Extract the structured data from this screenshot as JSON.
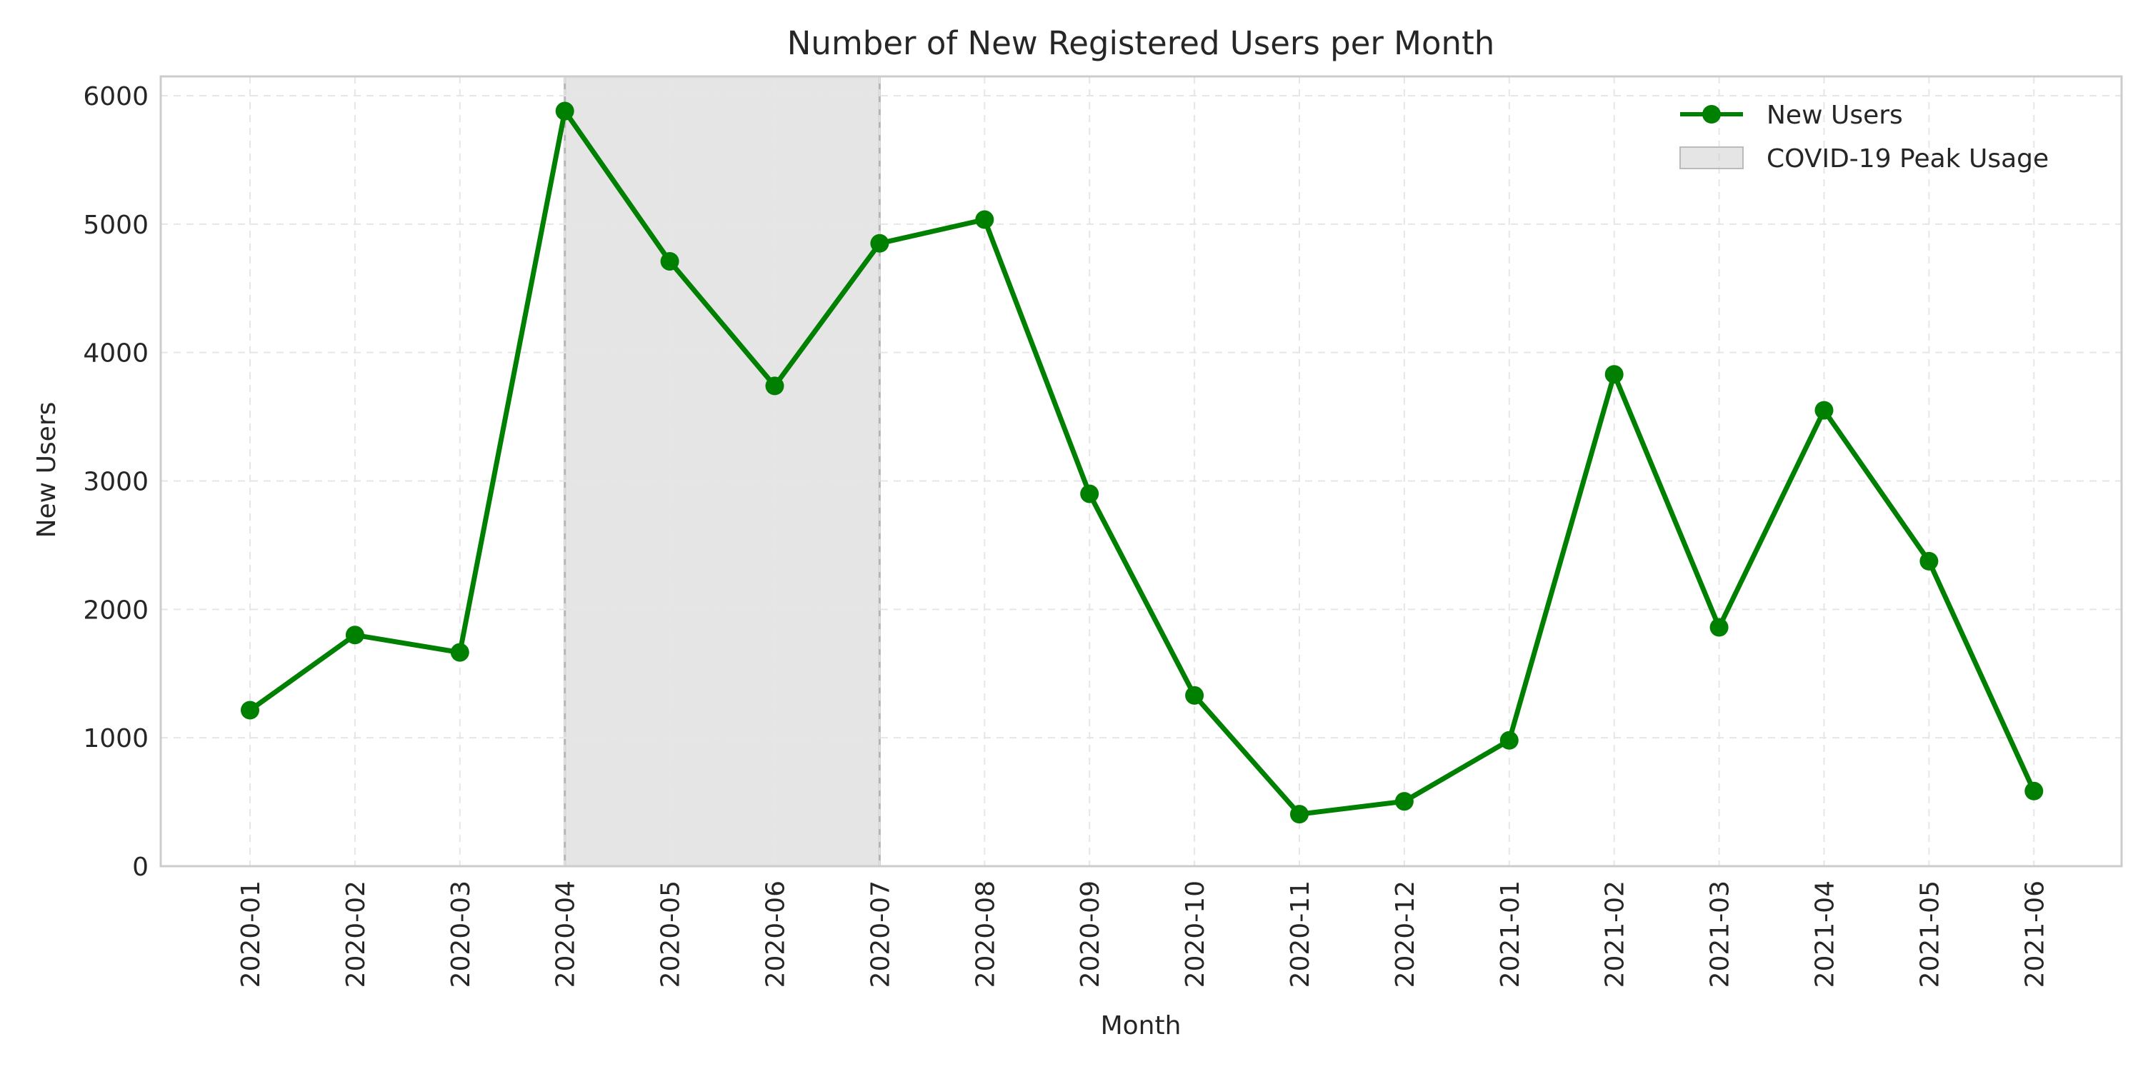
{
  "chart_data": {
    "type": "line",
    "title": "Number of New Registered Users per Month",
    "xlabel": "Month",
    "ylabel": "New Users",
    "categories": [
      "2020-01",
      "2020-02",
      "2020-03",
      "2020-04",
      "2020-05",
      "2020-06",
      "2020-07",
      "2020-08",
      "2020-09",
      "2020-10",
      "2020-11",
      "2020-12",
      "2021-01",
      "2021-02",
      "2021-03",
      "2021-04",
      "2021-05",
      "2021-06"
    ],
    "series": [
      {
        "name": "New Users",
        "color": "#008000",
        "marker": "circle",
        "values": [
          1215,
          1800,
          1665,
          5880,
          4710,
          3740,
          4850,
          5035,
          2900,
          1330,
          405,
          505,
          980,
          3830,
          1860,
          3550,
          2375,
          585
        ]
      }
    ],
    "shaded_region": {
      "label": "COVID-19 Peak Usage",
      "from": "2020-04",
      "to": "2020-07",
      "color": "#cccccc"
    },
    "ylim": [
      0,
      6150
    ],
    "yticks": [
      0,
      1000,
      2000,
      3000,
      4000,
      5000,
      6000
    ],
    "grid": true,
    "legend_position": "top-right"
  }
}
